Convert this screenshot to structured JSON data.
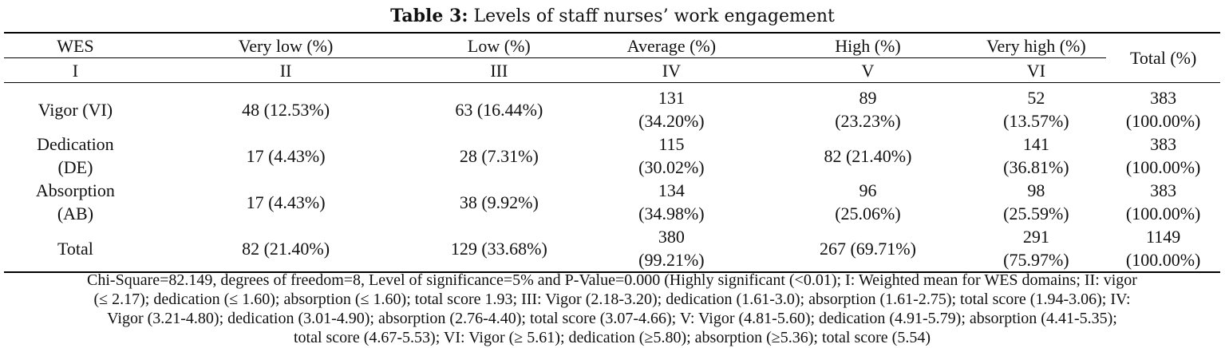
{
  "caption": {
    "label": "Table 3:",
    "text": " Levels of staff nurses’ work engagement"
  },
  "header": {
    "row1": [
      "WES",
      "Very low (%)",
      "Low (%)",
      "Average (%)",
      "High (%)",
      "Very high (%)"
    ],
    "total": "Total (%)",
    "row2": [
      "I",
      "II",
      "III",
      "IV",
      "V",
      "VI"
    ]
  },
  "rows": [
    {
      "label_lines": [
        "Vigor (VI)"
      ],
      "cells": [
        [
          "48 (12.53%)"
        ],
        [
          "63 (16.44%)"
        ],
        [
          "131",
          "(34.20%)"
        ],
        [
          "89",
          "(23.23%)"
        ],
        [
          "52",
          "(13.57%)"
        ],
        [
          "383",
          "(100.00%)"
        ]
      ]
    },
    {
      "label_lines": [
        "Dedication",
        "(DE)"
      ],
      "cells": [
        [
          "17 (4.43%)"
        ],
        [
          "28 (7.31%)"
        ],
        [
          "115",
          "(30.02%)"
        ],
        [
          "82 (21.40%)"
        ],
        [
          "141",
          "(36.81%)"
        ],
        [
          "383",
          "(100.00%)"
        ]
      ]
    },
    {
      "label_lines": [
        "Absorption",
        "(AB)"
      ],
      "cells": [
        [
          "17 (4.43%)"
        ],
        [
          "38 (9.92%)"
        ],
        [
          "134",
          "(34.98%)"
        ],
        [
          "96",
          "(25.06%)"
        ],
        [
          "98",
          "(25.59%)"
        ],
        [
          "383",
          "(100.00%)"
        ]
      ]
    },
    {
      "label_lines": [
        "Total"
      ],
      "cells": [
        [
          "82 (21.40%)"
        ],
        [
          "129 (33.68%)"
        ],
        [
          "380",
          "(99.21%)"
        ],
        [
          "267 (69.71%)"
        ],
        [
          "291",
          "(75.97%)"
        ],
        [
          "1149",
          "(100.00%)"
        ]
      ]
    }
  ],
  "footnote": [
    "Chi-Square=82.149, degrees of freedom=8, Level of significance=5% and P-Value=0.000 (Highly significant (<0.01); I: Weighted mean for WES domains; II: vigor",
    "(≤ 2.17); dedication (≤ 1.60); absorption (≤ 1.60); total score 1.93; III: Vigor (2.18-3.20); dedication (1.61-3.0); absorption (1.61-2.75); total score (1.94-3.06); IV:",
    "Vigor (3.21-4.80); dedication (3.01-4.90); absorption (2.76-4.40); total score (3.07-4.66); V: Vigor (4.81-5.60); dedication (4.91-5.79); absorption (4.41-5.35);",
    "total score (4.67-5.53); VI: Vigor (≥ 5.61); dedication (≥5.80); absorption (≥5.36); total score (5.54)"
  ]
}
